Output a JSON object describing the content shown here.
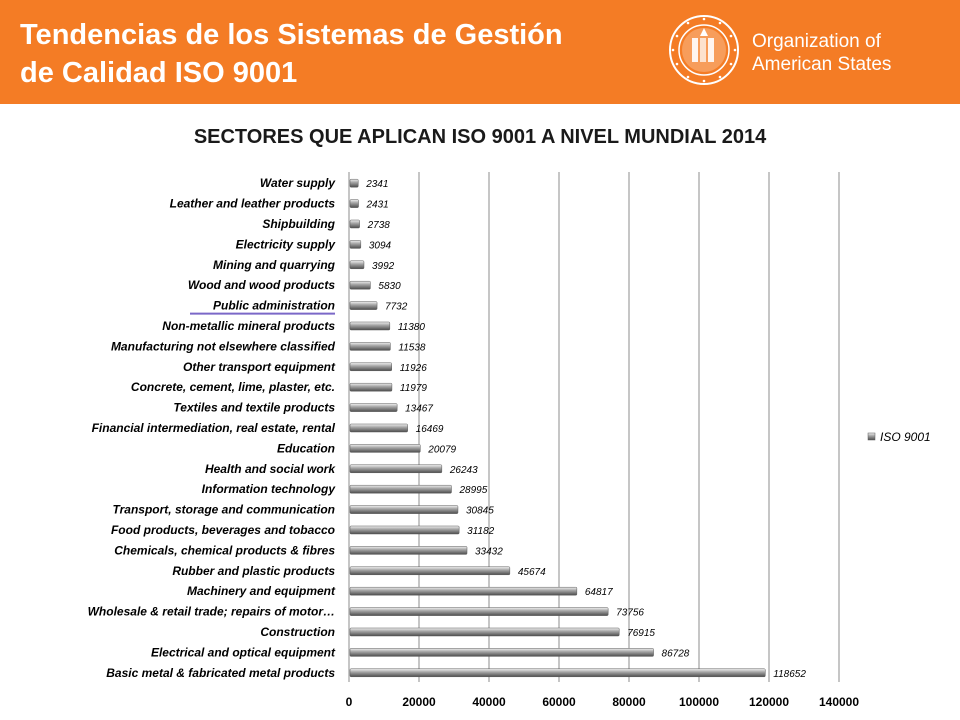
{
  "header": {
    "title_line1": "Tendencias de los Sistemas de Gestión",
    "title_line2": "de Calidad ISO 9001",
    "org_line1": "Organization of",
    "org_line2": "American States",
    "bg_color": "#f47c25"
  },
  "chart_data": {
    "type": "bar",
    "orientation": "horizontal",
    "title": "SECTORES QUE APLICAN ISO 9001 A NIVEL MUNDIAL 2014",
    "xlim": [
      0,
      140000
    ],
    "xticks": [
      "0",
      "20000",
      "40000",
      "60000",
      "80000",
      "100000",
      "120000",
      "140000"
    ],
    "grid": true,
    "legend_position": "right",
    "series": [
      {
        "name": "ISO 9001",
        "color": "#7f7f7f",
        "categories": [
          "Water supply",
          "Leather and leather products",
          "Shipbuilding",
          "Electricity supply",
          "Mining and quarrying",
          "Wood and wood products",
          "Public administration",
          "Non-metallic mineral products",
          "Manufacturing not elsewhere classified",
          "Other transport equipment",
          "Concrete, cement, lime, plaster, etc.",
          "Textiles and textile products",
          "Financial intermediation, real estate, rental",
          "Education",
          "Health and social work",
          "Information technology",
          "Transport, storage and communication",
          "Food products, beverages and tobacco",
          "Chemicals, chemical products & fibres",
          "Rubber and plastic products",
          "Machinery and equipment",
          "Wholesale & retail trade; repairs of motor…",
          "Construction",
          "Electrical and optical equipment",
          "Basic metal & fabricated metal products"
        ],
        "values": [
          2341,
          2431,
          2738,
          3094,
          3992,
          5830,
          7732,
          11380,
          11538,
          11926,
          11979,
          13467,
          16469,
          20079,
          26243,
          28995,
          30845,
          31182,
          33432,
          45674,
          64817,
          73756,
          76915,
          86728,
          118652
        ]
      }
    ],
    "highlighted_category": "Public administration",
    "highlight_color": "#7b68c8"
  }
}
